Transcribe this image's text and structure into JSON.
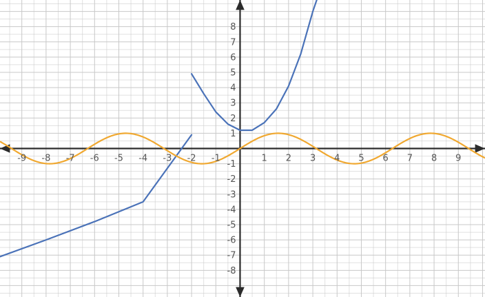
{
  "chart_data": {
    "type": "line",
    "grid": true,
    "xlim": [
      -9.9,
      10.1
    ],
    "ylim": [
      -9.75,
      9.75
    ],
    "x_ticks": [
      -9,
      -8,
      -7,
      -6,
      -5,
      -4,
      -3,
      -2,
      -1,
      0,
      1,
      2,
      3,
      4,
      5,
      6,
      7,
      8,
      9
    ],
    "y_ticks": [
      -8,
      -7,
      -6,
      -5,
      -4,
      -3,
      -2,
      -1,
      0,
      1,
      2,
      3,
      4,
      5,
      6,
      7,
      8
    ],
    "x_tick_labels": [
      "-9",
      "-8",
      "-7",
      "-6",
      "-5",
      "-4",
      "-3",
      "-2",
      "-1",
      "",
      "1",
      "2",
      "3",
      "4",
      "5",
      "6",
      "7",
      "8",
      "9"
    ],
    "y_tick_labels": [
      "-8",
      "-7",
      "-6",
      "-5",
      "-4",
      "-3",
      "-2",
      "-1",
      "",
      "1",
      "2",
      "3",
      "4",
      "5",
      "6",
      "7",
      "8"
    ],
    "axis_arrows": true,
    "series": [
      {
        "color": "#4a72b8",
        "segments": [
          [
            [
              -9.9,
              -7.1
            ],
            [
              -8,
              -6.0
            ],
            [
              -6,
              -4.8
            ],
            [
              -4,
              -3.5
            ],
            [
              -2.0,
              0.9
            ]
          ],
          [
            [
              -2.0,
              4.9
            ],
            [
              -1.5,
              3.6
            ],
            [
              -1.0,
              2.4
            ],
            [
              -0.5,
              1.6
            ],
            [
              0.0,
              1.2
            ],
            [
              0.5,
              1.2
            ],
            [
              1.0,
              1.7
            ],
            [
              1.5,
              2.6
            ],
            [
              2.0,
              4.1
            ],
            [
              2.5,
              6.2
            ],
            [
              3.0,
              9.0
            ],
            [
              3.3,
              10.4
            ]
          ]
        ]
      },
      {
        "color": "#f0a830",
        "function": "sin",
        "amplitude": 1,
        "x_range": [
          -9.9,
          10.1
        ]
      }
    ]
  }
}
